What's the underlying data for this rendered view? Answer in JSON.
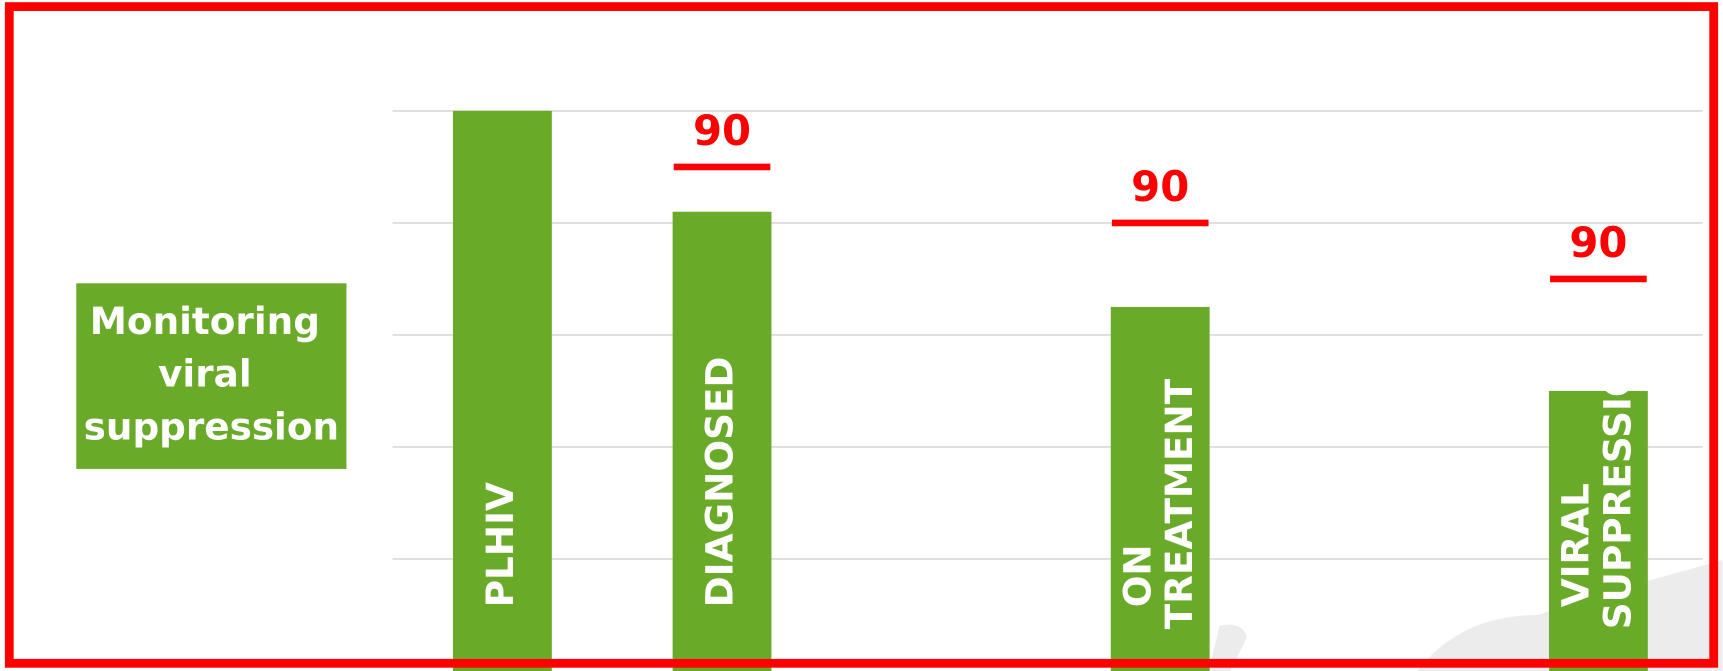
{
  "chart_data": {
    "type": "bar",
    "title": "Monitoring viral suppression",
    "categories": [
      "PLHIV",
      "DIAGNOSED",
      "ON TREATMENT",
      "VIRAL SUPPRESSION"
    ],
    "values": [
      100,
      82,
      65,
      50
    ],
    "color": "#6aaa29",
    "ylim": [
      0,
      100
    ],
    "yticks": [
      20,
      40,
      60,
      80,
      100
    ],
    "grid": true,
    "targets": {
      "color": "#ff0000",
      "values": [
        null,
        90,
        80,
        70
      ],
      "labels": [
        null,
        "90",
        "90",
        "90"
      ]
    }
  }
}
